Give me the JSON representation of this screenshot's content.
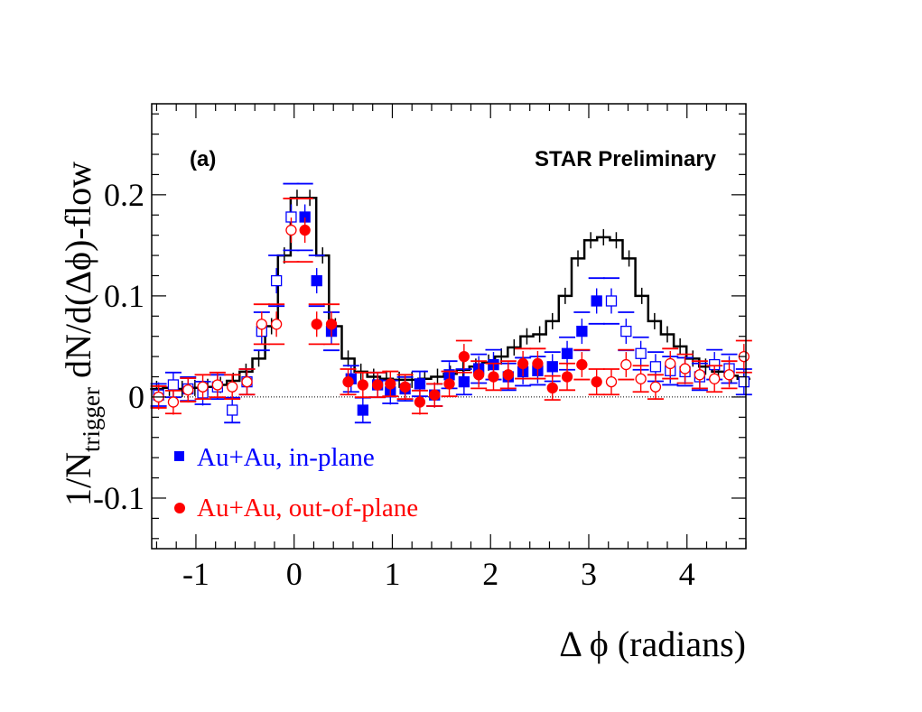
{
  "chart_data": {
    "type": "scatter",
    "panel_label": "(a)",
    "annotation": "STAR Preliminary",
    "xlabel": "Δ ϕ (radians)",
    "ylabel": {
      "prefix": "1/N",
      "subscript": "trigger",
      "suffix": " dN/d(Δϕ)-flow"
    },
    "xlim": [
      -1.45,
      4.6
    ],
    "ylim": [
      -0.15,
      0.29
    ],
    "x_ticks": [
      -1,
      0,
      1,
      2,
      3,
      4
    ],
    "x_tick_labels": [
      "-1",
      "0",
      "1",
      "2",
      "3",
      "4"
    ],
    "y_ticks": [
      -0.1,
      0,
      0.1,
      0.2
    ],
    "y_tick_labels": [
      "-0.1",
      "0",
      "0.1",
      "0.2"
    ],
    "zero_line": 0,
    "legend": [
      {
        "label": "Au+Au, in-plane",
        "color": "#0000ff",
        "marker": "filled-square"
      },
      {
        "label": "Au+Au, out-of-plane",
        "color": "#ff0000",
        "marker": "filled-circle"
      }
    ],
    "series": [
      {
        "name": "reference histogram",
        "style": "histogram",
        "color": "#000000",
        "x": [
          -1.4,
          -1.27,
          -1.14,
          -1.01,
          -0.88,
          -0.75,
          -0.62,
          -0.49,
          -0.36,
          -0.23,
          -0.1,
          0.03,
          0.16,
          0.29,
          0.42,
          0.55,
          0.68,
          0.81,
          0.94,
          1.07,
          1.2,
          1.33,
          1.46,
          1.59,
          1.72,
          1.85,
          1.98,
          2.11,
          2.24,
          2.37,
          2.5,
          2.63,
          2.76,
          2.89,
          3.02,
          3.15,
          3.28,
          3.41,
          3.54,
          3.67,
          3.8,
          3.93,
          4.06,
          4.19,
          4.32,
          4.45,
          4.58
        ],
        "values": [
          0.008,
          0.009,
          0.008,
          0.009,
          0.01,
          0.012,
          0.016,
          0.025,
          0.038,
          0.07,
          0.14,
          0.197,
          0.197,
          0.14,
          0.07,
          0.038,
          0.025,
          0.02,
          0.018,
          0.017,
          0.017,
          0.018,
          0.02,
          0.023,
          0.027,
          0.03,
          0.034,
          0.04,
          0.049,
          0.06,
          0.062,
          0.075,
          0.1,
          0.137,
          0.155,
          0.158,
          0.155,
          0.137,
          0.1,
          0.075,
          0.062,
          0.05,
          0.038,
          0.03,
          0.025,
          0.021,
          0.018
        ]
      },
      {
        "name": "Au+Au, in-plane (near side)",
        "marker": "filled-square",
        "color": "#0000ff",
        "x": [
          0.11,
          0.23,
          0.38,
          0.58,
          0.7,
          0.85,
          0.98,
          1.13,
          1.28,
          1.43,
          1.58,
          1.73,
          1.88,
          2.03,
          2.18,
          2.33,
          2.48,
          2.63,
          2.78,
          2.93,
          3.08
        ],
        "values": [
          0.178,
          0.115,
          0.065,
          0.018,
          -0.013,
          0.012,
          0.005,
          0.008,
          0.013,
          0.002,
          0.022,
          0.015,
          0.028,
          0.032,
          0.02,
          0.025,
          0.026,
          0.03,
          0.043,
          0.065,
          0.095
        ]
      },
      {
        "name": "Au+Au, in-plane (reflected)",
        "marker": "open-square",
        "color": "#0000ff",
        "x": [
          -1.38,
          -1.23,
          -1.08,
          -0.93,
          -0.78,
          -0.63,
          -0.48,
          -0.33,
          -0.18,
          -0.03,
          3.23,
          3.38,
          3.53,
          3.68,
          3.83,
          3.98,
          4.13,
          4.28,
          4.43,
          4.58
        ],
        "values": [
          0.002,
          0.012,
          0.008,
          0.004,
          0.01,
          -0.013,
          0.015,
          0.065,
          0.115,
          0.178,
          0.095,
          0.065,
          0.043,
          0.03,
          0.026,
          0.025,
          0.02,
          0.032,
          0.028,
          0.015
        ]
      },
      {
        "name": "Au+Au, out-of-plane (near side)",
        "marker": "filled-circle",
        "color": "#ff0000",
        "x": [
          0.11,
          0.23,
          0.38,
          0.55,
          0.7,
          0.85,
          0.98,
          1.13,
          1.28,
          1.43,
          1.58,
          1.73,
          1.88,
          2.03,
          2.18,
          2.33,
          2.48,
          2.63,
          2.78,
          2.93,
          3.08
        ],
        "values": [
          0.165,
          0.072,
          0.072,
          0.015,
          0.012,
          0.012,
          0.013,
          0.01,
          -0.005,
          0.002,
          0.013,
          0.04,
          0.022,
          0.02,
          0.022,
          0.033,
          0.033,
          0.009,
          0.02,
          0.032,
          0.015
        ]
      },
      {
        "name": "Au+Au, out-of-plane (reflected)",
        "marker": "open-circle",
        "color": "#ff0000",
        "x": [
          -1.38,
          -1.23,
          -1.08,
          -0.93,
          -0.78,
          -0.63,
          -0.48,
          -0.33,
          -0.18,
          -0.03,
          3.23,
          3.38,
          3.53,
          3.68,
          3.83,
          3.98,
          4.13,
          4.28,
          4.43,
          4.58
        ],
        "values": [
          0.0,
          -0.005,
          0.007,
          0.01,
          0.012,
          0.01,
          0.015,
          0.072,
          0.072,
          0.165,
          0.015,
          0.032,
          0.018,
          0.01,
          0.033,
          0.028,
          0.022,
          0.018,
          0.022,
          0.04
        ]
      }
    ]
  }
}
